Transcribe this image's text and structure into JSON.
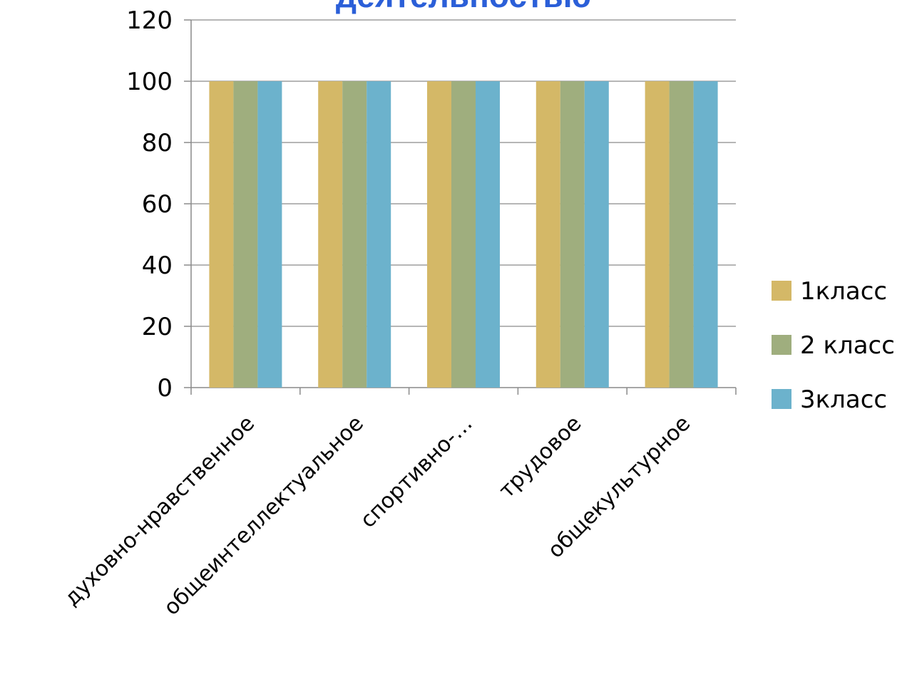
{
  "chart_data": {
    "type": "bar",
    "title": "деятельностью",
    "xlabel": "",
    "ylabel": "",
    "categories": [
      "духовно-нравственное",
      "общеинтеллектуальное",
      "спортивно-…",
      "трудовое",
      "общекультурное"
    ],
    "series": [
      {
        "name": "1класс",
        "values": [
          100,
          100,
          100,
          100,
          100
        ],
        "color": "#d4b867"
      },
      {
        "name": "2 класс",
        "values": [
          100,
          100,
          100,
          100,
          100
        ],
        "color": "#9fae7e"
      },
      {
        "name": "3класс",
        "values": [
          100,
          100,
          100,
          100,
          100
        ],
        "color": "#6cb2cc"
      }
    ],
    "ylim": [
      0,
      120
    ],
    "yticks": [
      0,
      20,
      40,
      60,
      80,
      100,
      120
    ],
    "grid": true,
    "legend_position": "right",
    "title_color": "#2b5fd8"
  }
}
